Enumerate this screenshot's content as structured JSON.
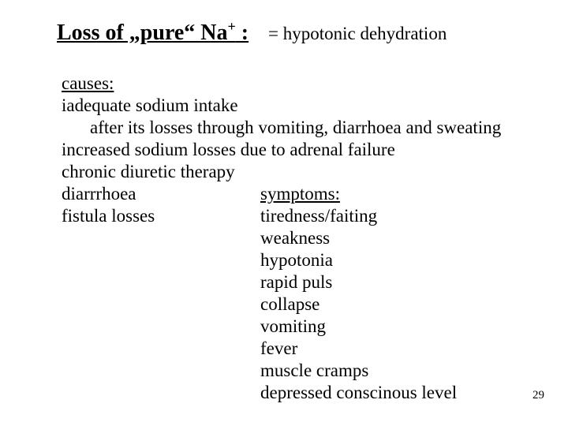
{
  "title": {
    "prefix": "Loss of „pure“ Na",
    "sup": "+",
    "suffix": " :",
    "right": "=   hypotonic dehydration"
  },
  "causes": {
    "heading": "causes:",
    "lines": [
      "iadequate sodium intake",
      "after its losses through vomiting, diarrhoea and sweating",
      "increased sodium losses due to adrenal failure",
      "chronic diuretic therapy",
      "diarrrhoea",
      "fistula losses"
    ]
  },
  "symptoms": {
    "heading": "symptoms:",
    "lines": [
      "tiredness/faiting",
      "weakness",
      "hypotonia",
      "rapid puls",
      "collapse",
      "vomiting",
      "fever",
      "muscle cramps",
      "depressed conscinous level"
    ]
  },
  "page_number": "29",
  "colors": {
    "background": "#ffffff",
    "text": "#000000"
  },
  "typography": {
    "title_fontsize_pt": 28,
    "body_fontsize_pt": 23,
    "font_family": "Times New Roman"
  }
}
